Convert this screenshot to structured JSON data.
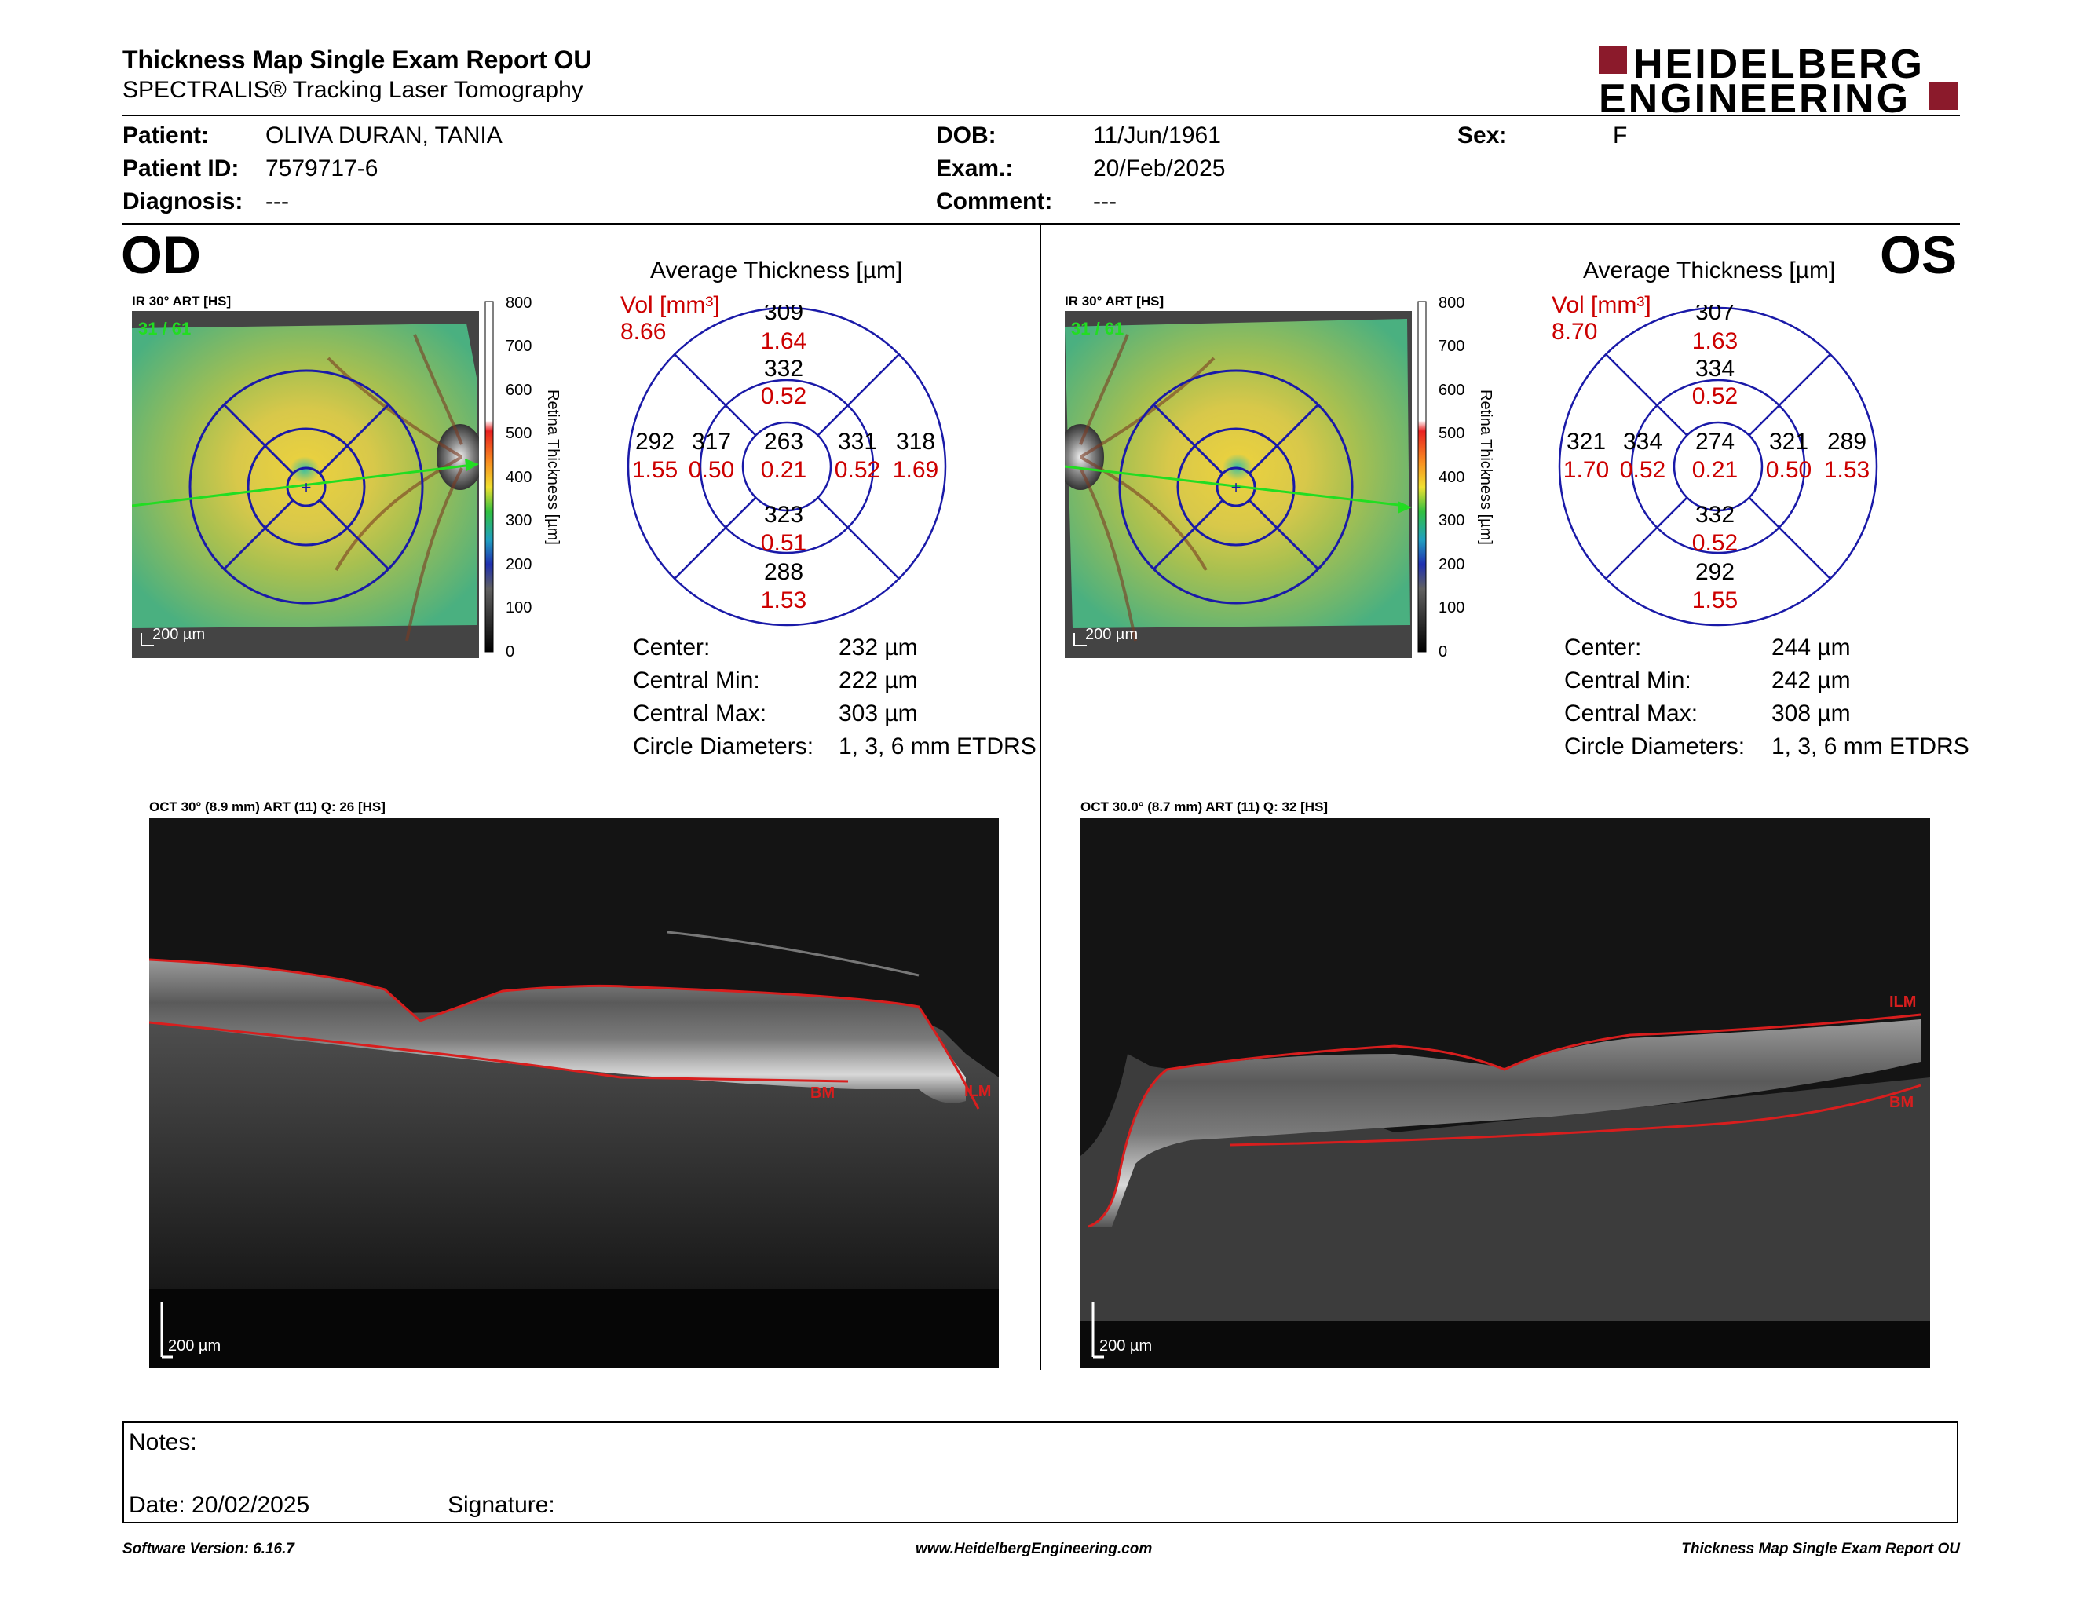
{
  "header": {
    "title": "Thickness Map Single Exam Report OU",
    "subtitle": "SPECTRALIS® Tracking Laser Tomography",
    "logo_line1": "HEIDELBERG",
    "logo_line2": "ENGINEERING"
  },
  "patient": {
    "patient_label": "Patient:",
    "patient_value": "OLIVA DURAN, TANIA",
    "id_label": "Patient ID:",
    "id_value": "7579717-6",
    "diagnosis_label": "Diagnosis:",
    "diagnosis_value": "---",
    "dob_label": "DOB:",
    "dob_value": "11/Jun/1961",
    "exam_label": "Exam.:",
    "exam_value": "20/Feb/2025",
    "comment_label": "Comment:",
    "comment_value": "---",
    "sex_label": "Sex:",
    "sex_value": "F"
  },
  "od": {
    "eye_label": "OD",
    "ir_label": "IR 30° ART [HS]",
    "ir_counter": "31 / 61",
    "scale_label": "200 µm",
    "colorbar_ticks": [
      "800",
      "700",
      "600",
      "500",
      "400",
      "300",
      "200",
      "100",
      "0"
    ],
    "colorbar_title": "Retina Thickness [µm]",
    "avg_title": "Average Thickness [µm]",
    "vol_label": "Vol [mm³]",
    "vol_value": "8.66",
    "etdrs": {
      "center": {
        "t": "263",
        "v": "0.21"
      },
      "inner_sup": {
        "t": "332",
        "v": "0.52"
      },
      "inner_inf": {
        "t": "323",
        "v": "0.51"
      },
      "inner_left": {
        "t": "317",
        "v": "0.50"
      },
      "inner_right": {
        "t": "331",
        "v": "0.52"
      },
      "outer_sup": {
        "t": "309",
        "v": "1.64"
      },
      "outer_inf": {
        "t": "288",
        "v": "1.53"
      },
      "outer_left": {
        "t": "292",
        "v": "1.55"
      },
      "outer_right": {
        "t": "318",
        "v": "1.69"
      }
    },
    "stats": {
      "center_label": "Center:",
      "center_value": "232 µm",
      "min_label": "Central Min:",
      "min_value": "222 µm",
      "max_label": "Central Max:",
      "max_value": "303 µm",
      "diam_label": "Circle Diameters:",
      "diam_value": "1, 3, 6 mm ETDRS"
    },
    "oct_label": "OCT 30° (8.9 mm) ART (11) Q: 26 [HS]",
    "oct_scale": "200 µm",
    "layer_bm": "BM",
    "layer_ilm": "ILM"
  },
  "os": {
    "eye_label": "OS",
    "ir_label": "IR 30° ART [HS]",
    "ir_counter": "31 / 61",
    "scale_label": "200 µm",
    "colorbar_ticks": [
      "800",
      "700",
      "600",
      "500",
      "400",
      "300",
      "200",
      "100",
      "0"
    ],
    "colorbar_title": "Retina Thickness [µm]",
    "avg_title": "Average Thickness [µm]",
    "vol_label": "Vol [mm³]",
    "vol_value": "8.70",
    "etdrs": {
      "center": {
        "t": "274",
        "v": "0.21"
      },
      "inner_sup": {
        "t": "334",
        "v": "0.52"
      },
      "inner_inf": {
        "t": "332",
        "v": "0.52"
      },
      "inner_left": {
        "t": "334",
        "v": "0.52"
      },
      "inner_right": {
        "t": "321",
        "v": "0.50"
      },
      "outer_sup": {
        "t": "307",
        "v": "1.63"
      },
      "outer_inf": {
        "t": "292",
        "v": "1.55"
      },
      "outer_left": {
        "t": "321",
        "v": "1.70"
      },
      "outer_right": {
        "t": "289",
        "v": "1.53"
      }
    },
    "stats": {
      "center_label": "Center:",
      "center_value": "244 µm",
      "min_label": "Central Min:",
      "min_value": "242 µm",
      "max_label": "Central Max:",
      "max_value": "308 µm",
      "diam_label": "Circle Diameters:",
      "diam_value": "1, 3, 6 mm ETDRS"
    },
    "oct_label": "OCT 30.0° (8.7 mm) ART (11) Q: 32 [HS]",
    "oct_scale": "200 µm",
    "layer_bm": "BM",
    "layer_ilm": "ILM"
  },
  "notes": {
    "notes_label": "Notes:",
    "date_label": "Date: 20/02/2025",
    "signature_label": "Signature:"
  },
  "footer": {
    "software": "Software Version: 6.16.7",
    "website": "www.HeidelbergEngineering.com",
    "report": "Thickness Map Single Exam Report OU"
  },
  "colors": {
    "accent_red": "#cc0000",
    "ring_blue": "#1a1aa8",
    "logo_red": "#8b1a2b",
    "layer_red": "#d81e1e",
    "counter_green": "#22dd22"
  }
}
